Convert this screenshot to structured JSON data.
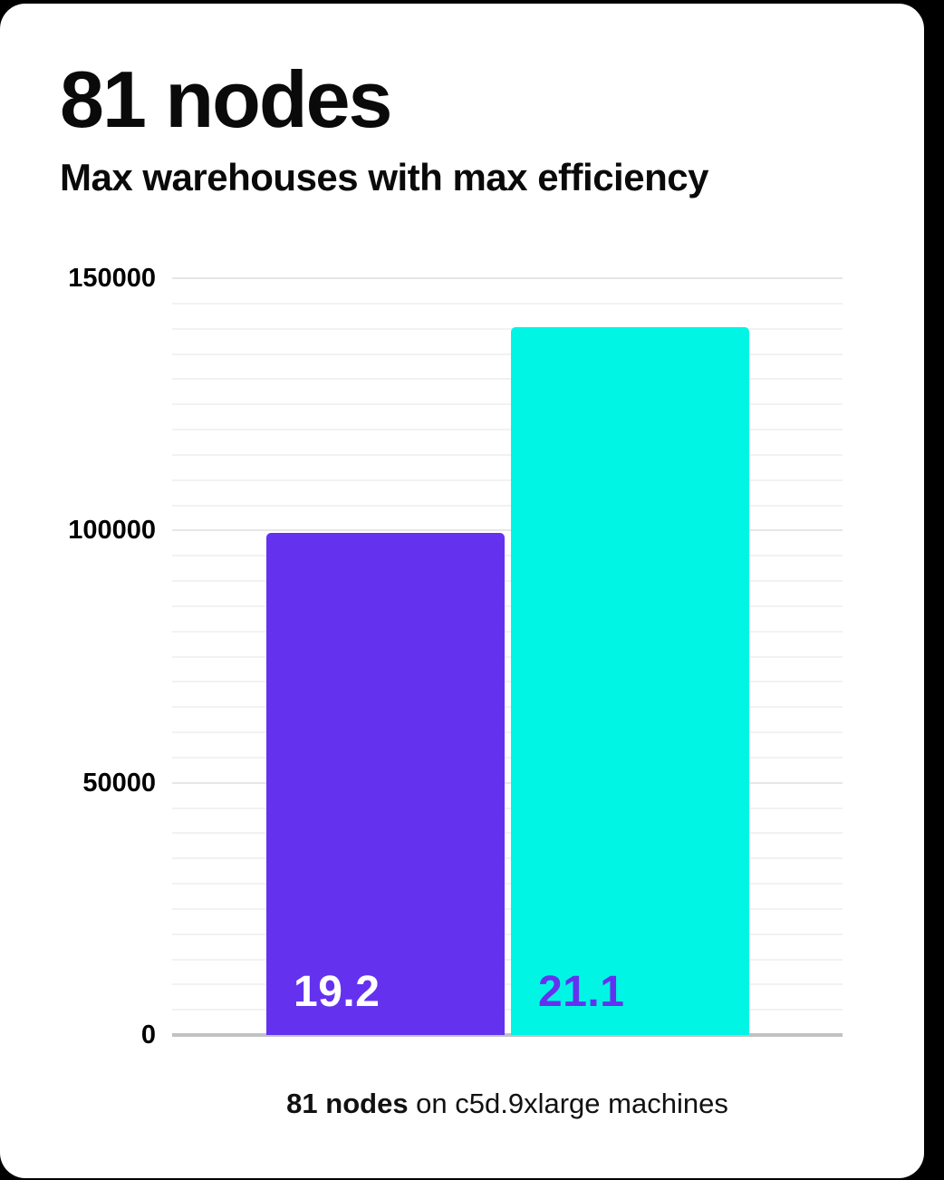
{
  "colors": {
    "background": "#000000",
    "card": "#ffffff",
    "text": "#0a0a0a"
  },
  "header": {
    "title": "81 nodes",
    "subtitle": "Max warehouses with max efficiency"
  },
  "caption": {
    "bold_part": "81 nodes",
    "regular_part": " on c5d.9xlarge machines"
  },
  "chart_data": {
    "type": "bar",
    "title": "81 nodes",
    "subtitle": "Max warehouses with max efficiency",
    "categories": [
      "19.2",
      "21.1"
    ],
    "series": [
      {
        "name": "bar-1",
        "label": "19.2",
        "value": 99500,
        "bar_color": "#6432EF",
        "label_color": "#FFFFFF"
      },
      {
        "name": "bar-2",
        "label": "21.1",
        "value": 140300,
        "bar_color": "#00F5E4",
        "label_color": "#6432EF"
      }
    ],
    "ylim": [
      0,
      150000
    ],
    "yticks": [
      0,
      50000,
      100000,
      150000
    ],
    "ytick_labels": [
      "0",
      "50000",
      "100000",
      "150000"
    ],
    "minor_gridline_step": 5000,
    "grid": "horizontal-only",
    "legend": "none",
    "annotation": "81 nodes on c5d.9xlarge machines",
    "minor_gridline_color": "#f2f2f2",
    "major_gridline_color": "#e6e6e6",
    "axis_line_color": "#c2c2c2"
  }
}
